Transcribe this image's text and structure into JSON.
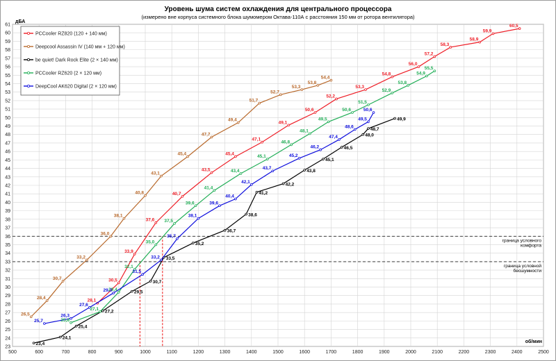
{
  "chart_data": {
    "type": "line",
    "title": "Уровень шума систем охлаждения для центрального процессора",
    "subtitle": "(измерено вне корпуса системного блока шумомером Октава-110А с расстояния 150 мм от ротора вентилятора)",
    "xlabel": "об/мин",
    "ylabel": "дБА",
    "xlim": [
      500,
      2500
    ],
    "ylim": [
      23,
      61
    ],
    "x_ticks": [
      500,
      600,
      700,
      800,
      900,
      1000,
      1100,
      1200,
      1300,
      1400,
      1500,
      1600,
      1700,
      1800,
      1900,
      2000,
      2100,
      2200,
      2300,
      2400,
      2500
    ],
    "y_ticks": [
      23,
      24,
      25,
      26,
      27,
      28,
      29,
      30,
      31,
      32,
      33,
      34,
      35,
      36,
      37,
      38,
      39,
      40,
      41,
      42,
      43,
      44,
      45,
      46,
      47,
      48,
      49,
      50,
      51,
      52,
      53,
      54,
      55,
      56,
      57,
      58,
      59,
      60,
      61
    ],
    "grid": true,
    "legend_position": "top-left",
    "series": [
      {
        "name": "PCCooler RZ820 (120 + 140 мм)",
        "color": "#ee1c25",
        "points": [
          [
            820,
            28.1
          ],
          [
            900,
            30.5
          ],
          [
            960,
            33.9
          ],
          [
            1040,
            37.6
          ],
          [
            1140,
            40.7
          ],
          [
            1250,
            43.5
          ],
          [
            1340,
            45.4
          ],
          [
            1440,
            47.1
          ],
          [
            1540,
            49.1
          ],
          [
            1640,
            50.6
          ],
          [
            1720,
            52.2
          ],
          [
            1830,
            53.3
          ],
          [
            1930,
            54.8
          ],
          [
            2030,
            56.0
          ],
          [
            2090,
            57.2
          ],
          [
            2150,
            58.3
          ],
          [
            2260,
            58.9
          ],
          [
            2310,
            59.9
          ],
          [
            2410,
            60.5
          ]
        ],
        "labels": [
          "28,1",
          "30,5",
          "33,9",
          "37,6",
          "40,7",
          "43,5",
          "45,4",
          "47,1",
          "49,1",
          "50,6",
          "52,2",
          "53,3",
          "54,8",
          "56,0",
          "57,2",
          "58,3",
          "58,9",
          "59,9",
          "60,5"
        ]
      },
      {
        "name": "Deepcool Assassin IV (140 мм + 120 мм)",
        "color": "#b8682a",
        "points": [
          [
            570,
            26.5
          ],
          [
            630,
            28.4
          ],
          [
            690,
            30.7
          ],
          [
            780,
            33.2
          ],
          [
            870,
            36.0
          ],
          [
            920,
            38.1
          ],
          [
            1000,
            40.8
          ],
          [
            1060,
            43.1
          ],
          [
            1160,
            45.4
          ],
          [
            1250,
            47.7
          ],
          [
            1350,
            49.4
          ],
          [
            1430,
            51.7
          ],
          [
            1510,
            52.7
          ],
          [
            1590,
            53.3
          ],
          [
            1650,
            53.8
          ],
          [
            1700,
            54.4
          ]
        ],
        "labels": [
          "26,5",
          "28,4",
          "30,7",
          "33,2",
          "36,0",
          "38,1",
          "40,8",
          "43,1",
          "45,4",
          "47,7",
          "49,4",
          "51,7",
          "52,7",
          "53,3",
          "53,8",
          "54,4"
        ]
      },
      {
        "name": "be quiet! Dark Rock Elite (2 × 140 мм)",
        "color": "#000000",
        "points": [
          [
            580,
            23.4
          ],
          [
            680,
            24.1
          ],
          [
            740,
            25.4
          ],
          [
            840,
            27.2
          ],
          [
            950,
            29.5
          ],
          [
            1020,
            30.7
          ],
          [
            1070,
            33.5
          ],
          [
            1180,
            35.2
          ],
          [
            1300,
            36.7
          ],
          [
            1380,
            38.6
          ],
          [
            1420,
            41.2
          ],
          [
            1520,
            42.2
          ],
          [
            1600,
            43.8
          ],
          [
            1670,
            45.1
          ],
          [
            1740,
            46.5
          ],
          [
            1820,
            48.0
          ],
          [
            1840,
            48.7
          ],
          [
            1940,
            49.9
          ]
        ],
        "labels": [
          "23,4",
          "24,1",
          "25,4",
          "27,2",
          "29,5",
          "30,7",
          "33,5",
          "35,2",
          "36,7",
          "38,6",
          "41,2",
          "42,2",
          "43,8",
          "45,1",
          "46,5",
          "48,0",
          "48,7",
          "49,9"
        ]
      },
      {
        "name": "PCCooler RZ620 (2 × 120 мм)",
        "color": "#1fad55",
        "points": [
          [
            720,
            25.8
          ],
          [
            830,
            27.1
          ],
          [
            900,
            29.4
          ],
          [
            960,
            32.1
          ],
          [
            1040,
            35.0
          ],
          [
            1110,
            37.5
          ],
          [
            1190,
            39.6
          ],
          [
            1260,
            41.4
          ],
          [
            1360,
            43.4
          ],
          [
            1460,
            45.1
          ],
          [
            1550,
            46.8
          ],
          [
            1620,
            48.1
          ],
          [
            1690,
            49.5
          ],
          [
            1780,
            50.6
          ],
          [
            1840,
            51.5
          ],
          [
            1930,
            52.9
          ],
          [
            1990,
            53.8
          ],
          [
            2060,
            54.9
          ],
          [
            2090,
            55.5
          ]
        ],
        "labels": [
          "25,8",
          "27,1",
          "29,4",
          "32,1",
          "35,0",
          "37,5",
          "39,6",
          "41,4",
          "43,4",
          "45,1",
          "46,8",
          "48,1",
          "49,5",
          "50,6",
          "51,5",
          "52,9",
          "53,8",
          "54,9",
          "55,5"
        ]
      },
      {
        "name": "DeepCool AK620 Digital (2 × 120 мм)",
        "color": "#0d0ddd",
        "points": [
          [
            620,
            25.7
          ],
          [
            720,
            26.3
          ],
          [
            790,
            27.6
          ],
          [
            880,
            29.3
          ],
          [
            990,
            31.5
          ],
          [
            1060,
            33.2
          ],
          [
            1120,
            35.7
          ],
          [
            1200,
            38.1
          ],
          [
            1280,
            39.6
          ],
          [
            1340,
            40.4
          ],
          [
            1400,
            42.1
          ],
          [
            1480,
            43.7
          ],
          [
            1580,
            45.2
          ],
          [
            1660,
            46.2
          ],
          [
            1730,
            47.4
          ],
          [
            1790,
            48.6
          ],
          [
            1840,
            49.5
          ],
          [
            1860,
            50.6
          ]
        ],
        "labels": [
          "25,7",
          "26,3",
          "27,6",
          "29,3",
          "31,5",
          "33,2",
          "35,7",
          "38,1",
          "39,6",
          "40,4",
          "42,1",
          "43,7",
          "45,2",
          "46,2",
          "47,4",
          "48,6",
          "49,5",
          "50,6"
        ]
      }
    ],
    "thresholds": [
      {
        "y": 36,
        "label_line1": "граница   условного",
        "label_line2": "комфорта"
      },
      {
        "y": 33,
        "label_line1": "граница   условной",
        "label_line2": "бесшумности"
      }
    ],
    "markers": [
      {
        "x": 980,
        "y": 33
      },
      {
        "x": 1065,
        "y": 36
      }
    ]
  }
}
